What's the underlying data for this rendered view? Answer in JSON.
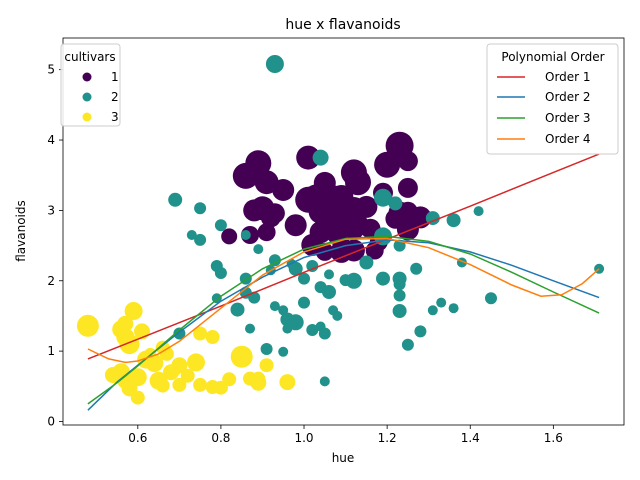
{
  "chart_data": {
    "type": "scatter",
    "title": "hue x flavanoids",
    "xlabel": "hue",
    "ylabel": "flavanoids",
    "xlim": [
      0.42,
      1.77
    ],
    "ylim": [
      -0.05,
      5.45
    ],
    "xticks": [
      0.6,
      0.8,
      1.0,
      1.2,
      1.4,
      1.6
    ],
    "xtick_labels": [
      "0.6",
      "0.8",
      "1.0",
      "1.2",
      "1.4",
      "1.6"
    ],
    "yticks": [
      0,
      1,
      2,
      3,
      4,
      5
    ],
    "ytick_labels": [
      "0",
      "1",
      "2",
      "3",
      "4",
      "5"
    ],
    "grid": false,
    "scatter_legend": {
      "title": "cultivars",
      "placement": "top-left",
      "entries": [
        {
          "label": "1",
          "color": "#440154"
        },
        {
          "label": "2",
          "color": "#21918c"
        },
        {
          "label": "3",
          "color": "#fde725"
        }
      ]
    },
    "line_legend": {
      "title": "Polynomial Order",
      "placement": "top-right",
      "entries": [
        {
          "label": "Order 1",
          "color": "#d62728"
        },
        {
          "label": "Order 2",
          "color": "#1f77b4"
        },
        {
          "label": "Order 3",
          "color": "#2ca02c"
        },
        {
          "label": "Order 4",
          "color": "#ff7f0e"
        }
      ]
    },
    "series": [
      {
        "cultivar": "1",
        "color": "#440154",
        "points": [
          [
            1.23,
            3.92,
            14
          ],
          [
            1.2,
            3.65,
            13
          ],
          [
            0.89,
            3.67,
            13
          ],
          [
            0.86,
            3.49,
            13
          ],
          [
            1.12,
            3.54,
            13
          ],
          [
            1.01,
            3.75,
            12
          ],
          [
            1.25,
            3.7,
            10
          ],
          [
            0.91,
            3.4,
            12
          ],
          [
            1.05,
            3.39,
            11
          ],
          [
            1.13,
            3.4,
            13
          ],
          [
            0.95,
            3.29,
            11
          ],
          [
            1.25,
            3.32,
            10
          ],
          [
            1.19,
            3.25,
            10
          ],
          [
            1.03,
            3.17,
            14
          ],
          [
            1.05,
            3.15,
            14
          ],
          [
            1.07,
            3.17,
            13
          ],
          [
            1.01,
            3.15,
            13
          ],
          [
            1.09,
            3.19,
            12
          ],
          [
            0.9,
            3.03,
            12
          ],
          [
            0.88,
            3.0,
            11
          ],
          [
            1.05,
            3.0,
            13
          ],
          [
            1.12,
            3.02,
            12
          ],
          [
            1.15,
            3.05,
            11
          ],
          [
            1.04,
            2.98,
            12
          ],
          [
            1.08,
            2.91,
            11
          ],
          [
            1.23,
            2.97,
            11
          ],
          [
            1.28,
            2.9,
            11
          ],
          [
            0.93,
            2.96,
            10
          ],
          [
            0.92,
            2.9,
            10
          ],
          [
            1.25,
            2.98,
            10
          ],
          [
            1.1,
            2.86,
            11
          ],
          [
            1.13,
            2.79,
            11
          ],
          [
            1.16,
            2.74,
            10
          ],
          [
            1.07,
            2.76,
            12
          ],
          [
            1.04,
            2.69,
            11
          ],
          [
            0.98,
            2.79,
            11
          ],
          [
            0.87,
            2.65,
            9
          ],
          [
            1.25,
            2.73,
            11
          ],
          [
            1.22,
            2.88,
            10
          ],
          [
            0.91,
            2.69,
            9
          ],
          [
            1.08,
            2.65,
            10
          ],
          [
            1.12,
            2.43,
            11
          ],
          [
            1.02,
            2.51,
            11
          ],
          [
            1.17,
            2.43,
            9
          ],
          [
            1.09,
            2.41,
            11
          ],
          [
            1.09,
            2.51,
            9
          ],
          [
            1.18,
            2.55,
            9
          ],
          [
            0.82,
            2.63,
            8
          ],
          [
            1.05,
            2.41,
            9
          ],
          [
            1.12,
            2.7,
            9
          ]
        ]
      },
      {
        "cultivar": "2",
        "color": "#21918c",
        "points": [
          [
            0.93,
            5.08,
            9
          ],
          [
            1.04,
            3.75,
            8
          ],
          [
            1.19,
            3.18,
            9
          ],
          [
            0.69,
            3.15,
            7
          ],
          [
            0.75,
            3.03,
            6
          ],
          [
            1.22,
            3.1,
            7
          ],
          [
            1.31,
            2.89,
            7
          ],
          [
            1.36,
            2.86,
            7
          ],
          [
            1.42,
            2.99,
            5
          ],
          [
            0.8,
            2.79,
            6
          ],
          [
            0.73,
            2.65,
            5
          ],
          [
            0.75,
            2.58,
            6
          ],
          [
            1.19,
            2.63,
            9
          ],
          [
            1.15,
            2.26,
            7
          ],
          [
            0.86,
            2.65,
            5
          ],
          [
            1.23,
            2.5,
            6
          ],
          [
            0.89,
            2.45,
            5
          ],
          [
            0.79,
            2.21,
            6
          ],
          [
            0.97,
            2.24,
            5
          ],
          [
            0.93,
            2.29,
            6
          ],
          [
            0.98,
            2.17,
            7
          ],
          [
            1.02,
            2.21,
            6
          ],
          [
            0.92,
            2.15,
            5
          ],
          [
            0.8,
            2.11,
            6
          ],
          [
            0.86,
            2.03,
            6
          ],
          [
            1.0,
            2.03,
            6
          ],
          [
            1.06,
            2.09,
            5
          ],
          [
            1.1,
            2.01,
            6
          ],
          [
            1.12,
            2.0,
            8
          ],
          [
            1.19,
            2.03,
            7
          ],
          [
            1.23,
            2.03,
            7
          ],
          [
            1.27,
            2.17,
            6
          ],
          [
            1.23,
            1.95,
            6
          ],
          [
            1.04,
            1.91,
            6
          ],
          [
            1.06,
            1.84,
            7
          ],
          [
            1.23,
            1.79,
            6
          ],
          [
            0.84,
            1.59,
            7
          ],
          [
            0.79,
            1.75,
            5
          ],
          [
            0.86,
            1.83,
            6
          ],
          [
            0.88,
            1.76,
            6
          ],
          [
            0.93,
            1.64,
            5
          ],
          [
            0.95,
            1.58,
            5
          ],
          [
            0.96,
            1.45,
            7
          ],
          [
            0.98,
            1.41,
            8
          ],
          [
            1.0,
            1.69,
            6
          ],
          [
            1.07,
            1.58,
            5
          ],
          [
            1.08,
            1.5,
            5
          ],
          [
            1.23,
            1.57,
            7
          ],
          [
            1.31,
            1.58,
            5
          ],
          [
            1.33,
            1.69,
            5
          ],
          [
            1.36,
            1.61,
            5
          ],
          [
            1.45,
            1.75,
            6
          ],
          [
            1.71,
            2.17,
            5
          ],
          [
            1.38,
            2.26,
            5
          ],
          [
            1.28,
            1.28,
            6
          ],
          [
            1.25,
            1.09,
            6
          ],
          [
            1.02,
            1.3,
            6
          ],
          [
            1.04,
            1.35,
            5
          ],
          [
            1.05,
            1.25,
            6
          ],
          [
            0.96,
            1.32,
            5
          ],
          [
            0.91,
            1.03,
            6
          ],
          [
            0.95,
            0.99,
            5
          ],
          [
            0.7,
            1.25,
            6
          ],
          [
            1.05,
            0.57,
            5
          ],
          [
            0.87,
            1.32,
            5
          ]
        ]
      },
      {
        "cultivar": "3",
        "color": "#fde725",
        "points": [
          [
            0.48,
            1.36,
            11
          ],
          [
            0.59,
            1.57,
            9
          ],
          [
            0.57,
            1.39,
            8
          ],
          [
            0.56,
            1.31,
            9
          ],
          [
            0.61,
            1.28,
            8
          ],
          [
            0.57,
            1.2,
            9
          ],
          [
            0.58,
            1.1,
            10
          ],
          [
            0.75,
            1.25,
            7
          ],
          [
            0.78,
            1.2,
            7
          ],
          [
            0.66,
            1.05,
            7
          ],
          [
            0.67,
            0.96,
            7
          ],
          [
            0.62,
            0.88,
            9
          ],
          [
            0.64,
            0.83,
            9
          ],
          [
            0.7,
            0.8,
            8
          ],
          [
            0.74,
            0.84,
            9
          ],
          [
            0.54,
            0.66,
            8
          ],
          [
            0.56,
            0.7,
            9
          ],
          [
            0.57,
            0.58,
            8
          ],
          [
            0.6,
            0.63,
            9
          ],
          [
            0.58,
            0.47,
            8
          ],
          [
            0.6,
            0.34,
            7
          ],
          [
            0.68,
            0.7,
            8
          ],
          [
            0.72,
            0.65,
            7
          ],
          [
            0.65,
            0.58,
            9
          ],
          [
            0.66,
            0.51,
            7
          ],
          [
            0.7,
            0.52,
            7
          ],
          [
            0.75,
            0.52,
            7
          ],
          [
            0.78,
            0.49,
            7
          ],
          [
            0.8,
            0.48,
            7
          ],
          [
            0.82,
            0.6,
            7
          ],
          [
            0.85,
            0.92,
            11
          ],
          [
            0.87,
            0.61,
            7
          ],
          [
            0.89,
            0.55,
            8
          ],
          [
            0.89,
            0.61,
            7
          ],
          [
            0.91,
            0.8,
            7
          ],
          [
            0.96,
            0.56,
            8
          ],
          [
            0.63,
            0.96,
            6
          ],
          [
            0.69,
            0.73,
            6
          ],
          [
            0.55,
            0.63,
            6
          ]
        ]
      }
    ],
    "fit_lines": [
      {
        "name": "Order 1",
        "color": "#d62728",
        "points": [
          [
            0.48,
            0.89
          ],
          [
            0.6,
            1.17
          ],
          [
            0.8,
            1.64
          ],
          [
            1.0,
            2.12
          ],
          [
            1.2,
            2.59
          ],
          [
            1.4,
            3.06
          ],
          [
            1.6,
            3.54
          ],
          [
            1.71,
            3.8
          ]
        ]
      },
      {
        "name": "Order 2",
        "color": "#1f77b4",
        "points": [
          [
            0.48,
            0.16
          ],
          [
            0.55,
            0.56
          ],
          [
            0.6,
            0.8
          ],
          [
            0.7,
            1.27
          ],
          [
            0.8,
            1.71
          ],
          [
            0.9,
            2.05
          ],
          [
            1.0,
            2.33
          ],
          [
            1.1,
            2.5
          ],
          [
            1.2,
            2.58
          ],
          [
            1.3,
            2.54
          ],
          [
            1.4,
            2.41
          ],
          [
            1.5,
            2.22
          ],
          [
            1.6,
            2.0
          ],
          [
            1.71,
            1.76
          ]
        ]
      },
      {
        "name": "Order 3",
        "color": "#2ca02c",
        "points": [
          [
            0.48,
            0.25
          ],
          [
            0.55,
            0.55
          ],
          [
            0.6,
            0.79
          ],
          [
            0.7,
            1.3
          ],
          [
            0.8,
            1.78
          ],
          [
            0.9,
            2.17
          ],
          [
            1.0,
            2.45
          ],
          [
            1.1,
            2.6
          ],
          [
            1.2,
            2.63
          ],
          [
            1.3,
            2.56
          ],
          [
            1.4,
            2.38
          ],
          [
            1.5,
            2.12
          ],
          [
            1.6,
            1.84
          ],
          [
            1.71,
            1.54
          ]
        ]
      },
      {
        "name": "Order 4",
        "color": "#ff7f0e",
        "points": [
          [
            0.48,
            1.03
          ],
          [
            0.53,
            0.89
          ],
          [
            0.57,
            0.84
          ],
          [
            0.6,
            0.86
          ],
          [
            0.65,
            0.96
          ],
          [
            0.7,
            1.14
          ],
          [
            0.8,
            1.61
          ],
          [
            0.9,
            2.08
          ],
          [
            1.0,
            2.41
          ],
          [
            1.1,
            2.59
          ],
          [
            1.2,
            2.6
          ],
          [
            1.3,
            2.47
          ],
          [
            1.4,
            2.23
          ],
          [
            1.5,
            1.94
          ],
          [
            1.57,
            1.78
          ],
          [
            1.62,
            1.8
          ],
          [
            1.67,
            1.96
          ],
          [
            1.71,
            2.17
          ]
        ]
      }
    ]
  }
}
